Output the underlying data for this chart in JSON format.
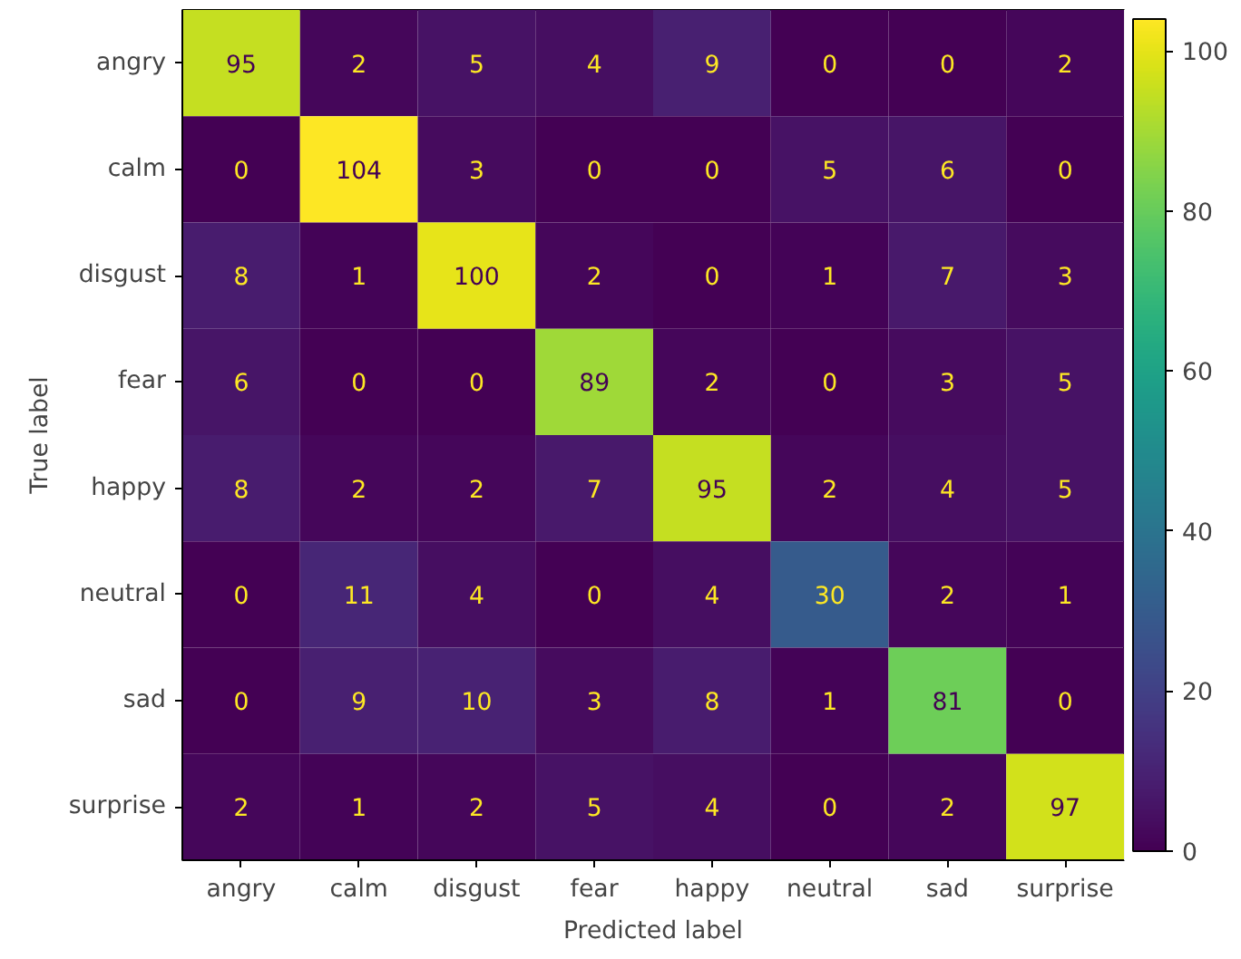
{
  "chart_data": {
    "type": "heatmap",
    "xlabel": "Predicted label",
    "ylabel": "True label",
    "categories": [
      "angry",
      "calm",
      "disgust",
      "fear",
      "happy",
      "neutral",
      "sad",
      "surprise"
    ],
    "y_categories": [
      "angry",
      "calm",
      "disgust",
      "fear",
      "happy",
      "neutral",
      "sad",
      "surprise"
    ],
    "cells": [
      [
        95,
        2,
        5,
        4,
        9,
        0,
        0,
        2
      ],
      [
        0,
        104,
        3,
        0,
        0,
        5,
        6,
        0
      ],
      [
        8,
        1,
        100,
        2,
        0,
        1,
        7,
        3
      ],
      [
        6,
        0,
        0,
        89,
        2,
        0,
        3,
        5
      ],
      [
        8,
        2,
        2,
        7,
        95,
        2,
        4,
        5
      ],
      [
        0,
        11,
        4,
        0,
        4,
        30,
        2,
        1
      ],
      [
        0,
        9,
        10,
        3,
        8,
        1,
        81,
        0
      ],
      [
        2,
        1,
        2,
        5,
        4,
        0,
        2,
        97
      ]
    ],
    "clim": [
      0,
      104
    ],
    "cticks": [
      0,
      20,
      40,
      60,
      80,
      100
    ],
    "data_labels": true
  }
}
